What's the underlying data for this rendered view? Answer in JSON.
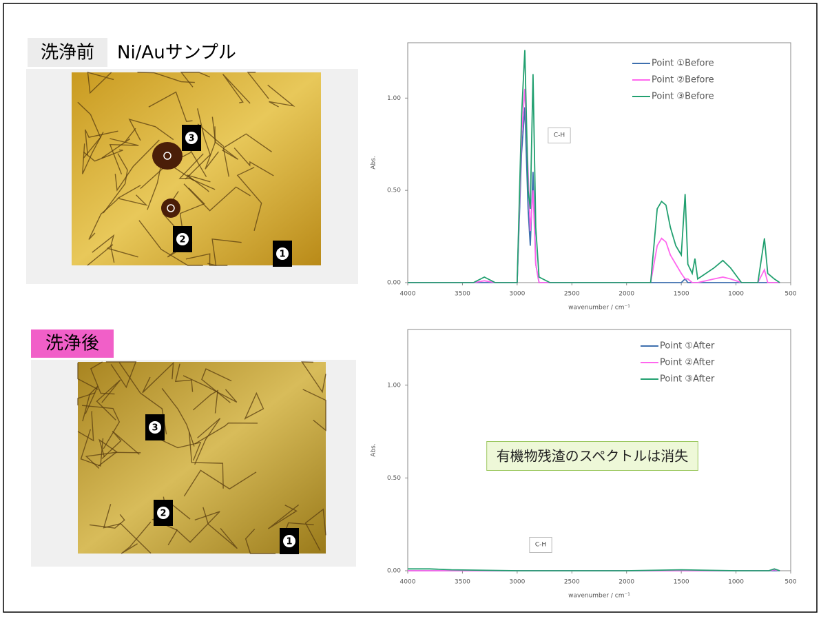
{
  "header": {
    "before_label": "洗浄前",
    "sample_label": "Ni/Auサンプル",
    "after_label": "洗浄後"
  },
  "images": [
    {
      "markers": [
        "3",
        "2",
        "1"
      ]
    },
    {
      "markers": [
        "3",
        "2",
        "1"
      ]
    }
  ],
  "chart_data": [
    {
      "type": "line",
      "xlabel": "wavenumber / cm⁻¹",
      "ylabel": "Abs.",
      "annotations": [
        "C-H"
      ],
      "legend": "upper right",
      "grid": false,
      "xlim": [
        4000,
        500
      ],
      "xticks": [
        4000,
        3500,
        3000,
        2500,
        2000,
        1500,
        1000,
        500
      ],
      "ylim": [
        0,
        1.3
      ],
      "yticks": [
        {
          "value": 0,
          "label": "0.00"
        },
        {
          "value": 0.5,
          "label": "0.50"
        },
        {
          "value": 1,
          "label": "1.00"
        }
      ],
      "x": [
        4000,
        3400,
        3300,
        3200,
        3000,
        2960,
        2930,
        2900,
        2880,
        2855,
        2830,
        2800,
        2700,
        1780,
        1720,
        1680,
        1640,
        1600,
        1550,
        1500,
        1465,
        1440,
        1400,
        1375,
        1350,
        1200,
        1120,
        1050,
        950,
        800,
        740,
        710,
        650,
        600
      ],
      "series": [
        {
          "name": "Point ①Before",
          "color": "#3d6fae",
          "values": [
            0,
            0,
            0,
            0,
            0,
            0.7,
            0.95,
            0.4,
            0.2,
            0.6,
            0.1,
            0,
            0,
            0,
            0,
            0,
            0,
            0,
            0,
            0,
            0.02,
            0,
            0,
            0,
            0,
            0,
            0,
            0,
            0,
            0,
            0,
            0,
            0,
            0
          ]
        },
        {
          "name": "Point ②Before",
          "color": "#ff66ee",
          "values": [
            0,
            0,
            0.01,
            0,
            0,
            0.8,
            1.05,
            0.6,
            0.28,
            0.5,
            0.1,
            0,
            0,
            0,
            0.2,
            0.24,
            0.22,
            0.15,
            0.1,
            0.05,
            0.02,
            0.02,
            0,
            0,
            0,
            0.02,
            0.03,
            0.02,
            0,
            0,
            0.07,
            0,
            0,
            0
          ]
        },
        {
          "name": "Point ③Before",
          "color": "#22a070",
          "values": [
            0,
            0,
            0.03,
            0,
            0,
            0.9,
            1.26,
            0.5,
            0.4,
            1.13,
            0.3,
            0.03,
            0,
            0,
            0.4,
            0.44,
            0.42,
            0.3,
            0.2,
            0.15,
            0.48,
            0.1,
            0.05,
            0.13,
            0.02,
            0.08,
            0.12,
            0.08,
            0,
            0,
            0.24,
            0.05,
            0.02,
            0
          ]
        }
      ]
    },
    {
      "type": "line",
      "xlabel": "wavenumber / cm⁻¹",
      "ylabel": "Abs.",
      "annotations": [
        "C-H",
        "有機物残渣のスペクトルは消失"
      ],
      "legend": "upper right",
      "grid": false,
      "xlim": [
        4000,
        500
      ],
      "xticks": [
        4000,
        3500,
        3000,
        2500,
        2000,
        1500,
        1000,
        500
      ],
      "ylim": [
        0,
        1.3
      ],
      "yticks": [
        {
          "value": 0,
          "label": "0.00"
        },
        {
          "value": 0.5,
          "label": "0.50"
        },
        {
          "value": 1,
          "label": "1.00"
        }
      ],
      "x": [
        4000,
        3800,
        3600,
        3000,
        2000,
        1500,
        1000,
        700,
        650,
        600
      ],
      "series": [
        {
          "name": "Point ①After",
          "color": "#3d6fae",
          "values": [
            0,
            0,
            0,
            0,
            0,
            0,
            0,
            0,
            0,
            0
          ]
        },
        {
          "name": "Point ②After",
          "color": "#ff66ee",
          "values": [
            0,
            0,
            0,
            0,
            0,
            0,
            0,
            0,
            0.005,
            0
          ]
        },
        {
          "name": "Point ③After",
          "color": "#22a070",
          "values": [
            0.01,
            0.01,
            0.005,
            0,
            0,
            0.005,
            0,
            0,
            0.01,
            0
          ]
        }
      ]
    }
  ]
}
